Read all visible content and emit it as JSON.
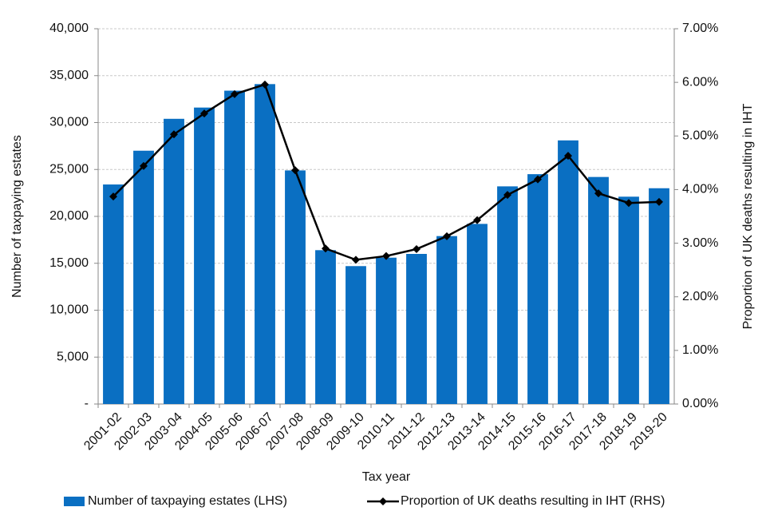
{
  "chart_data": {
    "type": "bar",
    "x_label": "Tax year",
    "y_label": "Number of taxpaying estates",
    "y2_label": "Proportion of UK deaths resulting in IHT",
    "categories": [
      "2001-02",
      "2002-03",
      "2003-04",
      "2004-05",
      "2005-06",
      "2006-07",
      "2007-08",
      "2008-09",
      "2009-10",
      "2010-11",
      "2011-12",
      "2012-13",
      "2013-14",
      "2014-15",
      "2015-16",
      "2016-17",
      "2017-18",
      "2018-19",
      "2019-20"
    ],
    "series": [
      {
        "name": "Number of taxpaying estates (LHS)",
        "type": "bar",
        "color": "#0a6fc2",
        "values": [
          23400,
          27000,
          30400,
          31600,
          33400,
          34100,
          24900,
          16400,
          14700,
          15600,
          16000,
          17900,
          19200,
          23200,
          24500,
          28100,
          24200,
          22100,
          23000
        ]
      },
      {
        "name": "Proportion of UK deaths resulting in IHT (RHS)",
        "type": "line",
        "color": "#000000",
        "axis": "y2",
        "values": [
          3.87,
          4.44,
          5.03,
          5.42,
          5.78,
          5.96,
          4.36,
          2.9,
          2.69,
          2.76,
          2.89,
          3.13,
          3.43,
          3.9,
          4.19,
          4.63,
          3.93,
          3.75,
          3.77
        ]
      }
    ],
    "ylim": [
      0,
      40000
    ],
    "yticks": [
      {
        "value": 0,
        "label": "-"
      },
      {
        "value": 5000,
        "label": "5,000"
      },
      {
        "value": 10000,
        "label": "10,000"
      },
      {
        "value": 15000,
        "label": "15,000"
      },
      {
        "value": 20000,
        "label": "20,000"
      },
      {
        "value": 25000,
        "label": "25,000"
      },
      {
        "value": 30000,
        "label": "30,000"
      },
      {
        "value": 35000,
        "label": "35,000"
      },
      {
        "value": 40000,
        "label": "40,000"
      }
    ],
    "y2lim": [
      0,
      7
    ],
    "y2ticks": [
      {
        "value": 0,
        "label": "0.00%"
      },
      {
        "value": 1,
        "label": "1.00%"
      },
      {
        "value": 2,
        "label": "2.00%"
      },
      {
        "value": 3,
        "label": "3.00%"
      },
      {
        "value": 4,
        "label": "4.00%"
      },
      {
        "value": 5,
        "label": "5.00%"
      },
      {
        "value": 6,
        "label": "6.00%"
      },
      {
        "value": 7,
        "label": "7.00%"
      }
    ],
    "grid": true,
    "legend": "bottom"
  }
}
